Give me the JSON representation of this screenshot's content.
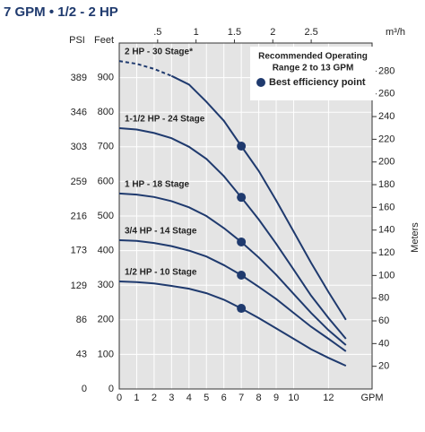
{
  "chart_data": {
    "type": "line",
    "title": "7 GPM • 1/2 - 2 HP",
    "x_label": "GPM",
    "x2_label": "m³/h",
    "y_label": "Feet",
    "y_psi_label": "PSI",
    "y2_label": "Meters",
    "x": [
      0,
      1,
      2,
      3,
      4,
      5,
      6,
      7,
      8,
      9,
      10,
      11,
      12,
      13
    ],
    "xlim": [
      0,
      14.5
    ],
    "xticks": [
      0,
      1,
      2,
      3,
      4,
      5,
      6,
      7,
      8,
      9,
      10,
      12
    ],
    "x2lim": [
      0,
      3.293
    ],
    "x2ticks": [
      {
        "value": 0.5,
        "label": ".5"
      },
      1,
      1.5,
      2,
      2.5
    ],
    "ylim": [
      0,
      1000
    ],
    "yticks": [
      0,
      100,
      200,
      300,
      400,
      500,
      600,
      700,
      800,
      900
    ],
    "psilim": [
      0,
      433
    ],
    "psiticks": [
      0,
      43,
      86,
      129,
      173,
      216,
      259,
      303,
      346,
      389
    ],
    "y2lim": [
      0,
      304.8
    ],
    "y2ticks": [
      20,
      40,
      60,
      80,
      100,
      120,
      140,
      160,
      180,
      200,
      220,
      240,
      260,
      280
    ],
    "grid": true,
    "series": [
      {
        "name": "2 HP - 30 Stage*",
        "color": "#1f3a6e",
        "dashed_values": [
          948,
          940,
          925,
          905,
          null,
          null,
          null,
          null,
          null,
          null,
          null,
          null,
          null,
          null
        ],
        "values": [
          null,
          null,
          null,
          905,
          880,
          830,
          775,
          702,
          630,
          545,
          455,
          365,
          280,
          200
        ]
      },
      {
        "name": "1-1/2 HP - 24 Stage",
        "color": "#1f3a6e",
        "values": [
          754,
          750,
          740,
          725,
          700,
          665,
          615,
          554,
          490,
          420,
          345,
          270,
          205,
          145
        ]
      },
      {
        "name": "1 HP - 18 Stage",
        "color": "#1f3a6e",
        "values": [
          565,
          562,
          555,
          543,
          525,
          500,
          465,
          425,
          380,
          330,
          275,
          220,
          170,
          127
        ]
      },
      {
        "name": "3/4 HP - 14 Stage",
        "color": "#1f3a6e",
        "values": [
          430,
          428,
          422,
          413,
          400,
          383,
          358,
          329,
          295,
          260,
          220,
          180,
          145,
          109
        ]
      },
      {
        "name": "1/2 HP - 10 Stage",
        "color": "#1f3a6e",
        "values": [
          311,
          309,
          305,
          298,
          290,
          277,
          258,
          233,
          205,
          175,
          145,
          115,
          90,
          67
        ]
      }
    ],
    "bep": {
      "name": "Best efficiency point",
      "color": "#1f3a6e",
      "x": 7,
      "values": [
        702,
        554,
        425,
        329,
        233
      ]
    },
    "note": [
      "Recommended Operating",
      "Range 2 to 13 GPM"
    ]
  }
}
